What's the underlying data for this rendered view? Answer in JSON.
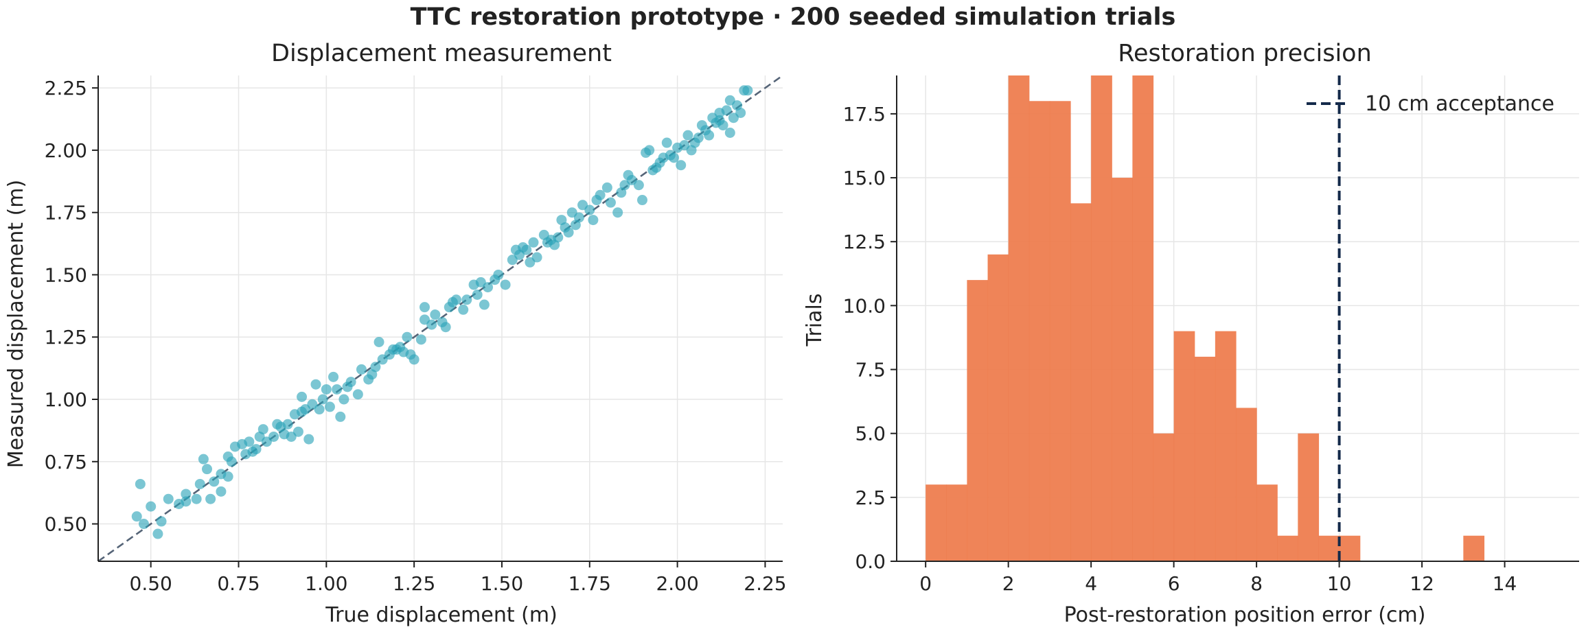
{
  "figure": {
    "suptitle": "TTC restoration prototype · 200 seeded simulation trials"
  },
  "chart_data": [
    {
      "type": "scatter",
      "title": "Displacement measurement",
      "xlabel": "True displacement (m)",
      "ylabel": "Measured displacement (m)",
      "xlim": [
        0.35,
        2.3
      ],
      "ylim": [
        0.35,
        2.3
      ],
      "xticks": [
        0.5,
        0.75,
        1.0,
        1.25,
        1.5,
        1.75,
        2.0,
        2.25
      ],
      "xtick_labels": [
        "0.50",
        "0.75",
        "1.00",
        "1.25",
        "1.50",
        "1.75",
        "2.00",
        "2.25"
      ],
      "yticks": [
        0.5,
        0.75,
        1.0,
        1.25,
        1.5,
        1.75,
        2.0,
        2.25
      ],
      "ytick_labels": [
        "0.50",
        "0.75",
        "1.00",
        "1.25",
        "1.50",
        "1.75",
        "2.00",
        "2.25"
      ],
      "grid": true,
      "reference_line": {
        "from": [
          0.35,
          0.35
        ],
        "to": [
          2.3,
          2.3
        ],
        "style": "dashed",
        "color": "#556477"
      },
      "marker_color": "#2aa3b8",
      "points": [
        [
          0.46,
          0.53
        ],
        [
          0.47,
          0.66
        ],
        [
          0.48,
          0.5
        ],
        [
          0.5,
          0.57
        ],
        [
          0.52,
          0.46
        ],
        [
          0.53,
          0.51
        ],
        [
          0.55,
          0.6
        ],
        [
          0.58,
          0.58
        ],
        [
          0.6,
          0.62
        ],
        [
          0.63,
          0.6
        ],
        [
          0.64,
          0.66
        ],
        [
          0.65,
          0.76
        ],
        [
          0.66,
          0.72
        ],
        [
          0.67,
          0.6
        ],
        [
          0.68,
          0.67
        ],
        [
          0.7,
          0.63
        ],
        [
          0.72,
          0.69
        ],
        [
          0.72,
          0.77
        ],
        [
          0.73,
          0.75
        ],
        [
          0.74,
          0.81
        ],
        [
          0.76,
          0.82
        ],
        [
          0.78,
          0.83
        ],
        [
          0.79,
          0.79
        ],
        [
          0.8,
          0.8
        ],
        [
          0.81,
          0.85
        ],
        [
          0.82,
          0.88
        ],
        [
          0.83,
          0.83
        ],
        [
          0.85,
          0.85
        ],
        [
          0.86,
          0.9
        ],
        [
          0.87,
          0.89
        ],
        [
          0.88,
          0.86
        ],
        [
          0.9,
          0.85
        ],
        [
          0.91,
          0.94
        ],
        [
          0.92,
          0.87
        ],
        [
          0.93,
          0.95
        ],
        [
          0.93,
          1.01
        ],
        [
          0.94,
          0.96
        ],
        [
          0.95,
          0.84
        ],
        [
          0.96,
          0.98
        ],
        [
          0.97,
          1.06
        ],
        [
          0.98,
          0.96
        ],
        [
          0.99,
          1.0
        ],
        [
          1.0,
          1.04
        ],
        [
          1.01,
          0.97
        ],
        [
          1.02,
          1.09
        ],
        [
          1.03,
          1.04
        ],
        [
          1.04,
          0.93
        ],
        [
          1.05,
          1.0
        ],
        [
          1.07,
          1.07
        ],
        [
          1.09,
          1.02
        ],
        [
          1.1,
          1.12
        ],
        [
          1.12,
          1.08
        ],
        [
          1.13,
          1.1
        ],
        [
          1.15,
          1.23
        ],
        [
          1.16,
          1.16
        ],
        [
          1.18,
          1.18
        ],
        [
          1.2,
          1.2
        ],
        [
          1.21,
          1.21
        ],
        [
          1.22,
          1.19
        ],
        [
          1.23,
          1.25
        ],
        [
          1.24,
          1.18
        ],
        [
          1.25,
          1.16
        ],
        [
          1.27,
          1.24
        ],
        [
          1.28,
          1.32
        ],
        [
          1.28,
          1.37
        ],
        [
          1.3,
          1.3
        ],
        [
          1.31,
          1.34
        ],
        [
          1.33,
          1.31
        ],
        [
          1.34,
          1.29
        ],
        [
          1.35,
          1.37
        ],
        [
          1.37,
          1.4
        ],
        [
          1.39,
          1.36
        ],
        [
          1.4,
          1.4
        ],
        [
          1.42,
          1.46
        ],
        [
          1.43,
          1.42
        ],
        [
          1.45,
          1.38
        ],
        [
          1.46,
          1.45
        ],
        [
          1.48,
          1.48
        ],
        [
          1.51,
          1.46
        ],
        [
          1.53,
          1.56
        ],
        [
          1.54,
          1.6
        ],
        [
          1.55,
          1.58
        ],
        [
          1.56,
          1.61
        ],
        [
          1.57,
          1.6
        ],
        [
          1.58,
          1.55
        ],
        [
          1.59,
          1.63
        ],
        [
          1.6,
          1.57
        ],
        [
          1.62,
          1.66
        ],
        [
          1.63,
          1.63
        ],
        [
          1.65,
          1.62
        ],
        [
          1.66,
          1.65
        ],
        [
          1.67,
          1.72
        ],
        [
          1.68,
          1.69
        ],
        [
          1.7,
          1.75
        ],
        [
          1.71,
          1.7
        ],
        [
          1.72,
          1.73
        ],
        [
          1.73,
          1.78
        ],
        [
          1.75,
          1.76
        ],
        [
          1.77,
          1.8
        ],
        [
          1.78,
          1.82
        ],
        [
          1.8,
          1.85
        ],
        [
          1.81,
          1.79
        ],
        [
          1.83,
          1.75
        ],
        [
          1.84,
          1.83
        ],
        [
          1.85,
          1.86
        ],
        [
          1.87,
          1.88
        ],
        [
          1.89,
          1.86
        ],
        [
          1.9,
          1.8
        ],
        [
          1.91,
          1.99
        ],
        [
          1.92,
          2.0
        ],
        [
          1.94,
          1.93
        ],
        [
          1.95,
          1.95
        ],
        [
          1.96,
          1.97
        ],
        [
          1.97,
          2.03
        ],
        [
          1.98,
          1.98
        ],
        [
          2.0,
          2.01
        ],
        [
          2.01,
          1.94
        ],
        [
          2.02,
          2.02
        ],
        [
          2.03,
          2.06
        ],
        [
          2.04,
          2.0
        ],
        [
          2.05,
          2.03
        ],
        [
          2.06,
          2.05
        ],
        [
          2.07,
          2.1
        ],
        [
          2.08,
          2.08
        ],
        [
          2.09,
          2.06
        ],
        [
          2.1,
          2.13
        ],
        [
          2.11,
          2.11
        ],
        [
          2.12,
          2.15
        ],
        [
          2.13,
          2.1
        ],
        [
          2.14,
          2.16
        ],
        [
          2.15,
          2.2
        ],
        [
          2.15,
          2.07
        ],
        [
          2.16,
          2.13
        ],
        [
          2.17,
          2.18
        ],
        [
          2.18,
          2.15
        ],
        [
          2.19,
          2.24
        ],
        [
          2.2,
          2.24
        ],
        [
          0.6,
          0.59
        ],
        [
          0.7,
          0.7
        ],
        [
          0.89,
          0.9
        ],
        [
          1.06,
          1.05
        ],
        [
          1.19,
          1.2
        ],
        [
          1.36,
          1.39
        ],
        [
          1.49,
          1.5
        ],
        [
          1.64,
          1.64
        ],
        [
          1.76,
          1.72
        ],
        [
          1.86,
          1.9
        ],
        [
          1.99,
          1.97
        ],
        [
          2.12,
          2.12
        ],
        [
          0.77,
          0.78
        ],
        [
          1.14,
          1.13
        ],
        [
          1.44,
          1.47
        ],
        [
          1.69,
          1.67
        ],
        [
          1.93,
          1.92
        ]
      ]
    },
    {
      "type": "bar",
      "title": "Restoration precision",
      "xlabel": "Post-restoration position error (cm)",
      "ylabel": "Trials",
      "xlim": [
        -0.7,
        15.8
      ],
      "ylim": [
        0,
        19.0
      ],
      "xticks": [
        0,
        2,
        4,
        6,
        8,
        10,
        12,
        14
      ],
      "xtick_labels": [
        "0",
        "2",
        "4",
        "6",
        "8",
        "10",
        "12",
        "14"
      ],
      "yticks": [
        0,
        2.5,
        5,
        7.5,
        10,
        12.5,
        15,
        17.5
      ],
      "ytick_labels": [
        "0.0",
        "2.5",
        "5.0",
        "7.5",
        "10.0",
        "12.5",
        "15.0",
        "17.5"
      ],
      "grid": true,
      "bar_color": "#ee7d4f",
      "bin_width": 0.5,
      "bins": [
        {
          "start": 0.0,
          "count": 3
        },
        {
          "start": 0.5,
          "count": 3
        },
        {
          "start": 1.0,
          "count": 11
        },
        {
          "start": 1.5,
          "count": 12
        },
        {
          "start": 2.0,
          "count": 19
        },
        {
          "start": 2.5,
          "count": 18
        },
        {
          "start": 3.0,
          "count": 18
        },
        {
          "start": 3.5,
          "count": 14
        },
        {
          "start": 4.0,
          "count": 19
        },
        {
          "start": 4.5,
          "count": 15
        },
        {
          "start": 5.0,
          "count": 19
        },
        {
          "start": 5.5,
          "count": 5
        },
        {
          "start": 6.0,
          "count": 9
        },
        {
          "start": 6.5,
          "count": 8
        },
        {
          "start": 7.0,
          "count": 9
        },
        {
          "start": 7.5,
          "count": 6
        },
        {
          "start": 8.0,
          "count": 3
        },
        {
          "start": 8.5,
          "count": 1
        },
        {
          "start": 9.0,
          "count": 5
        },
        {
          "start": 9.5,
          "count": 1
        },
        {
          "start": 10.0,
          "count": 1
        },
        {
          "start": 10.5,
          "count": 0
        },
        {
          "start": 11.0,
          "count": 0
        },
        {
          "start": 11.5,
          "count": 0
        },
        {
          "start": 12.0,
          "count": 0
        },
        {
          "start": 12.5,
          "count": 0
        },
        {
          "start": 13.0,
          "count": 1
        }
      ],
      "threshold": {
        "x": 10,
        "label": "10 cm acceptance",
        "color": "#142a4a",
        "style": "dashed"
      },
      "legend": {
        "placement": "top-right",
        "entries": [
          "10 cm acceptance"
        ]
      }
    }
  ]
}
